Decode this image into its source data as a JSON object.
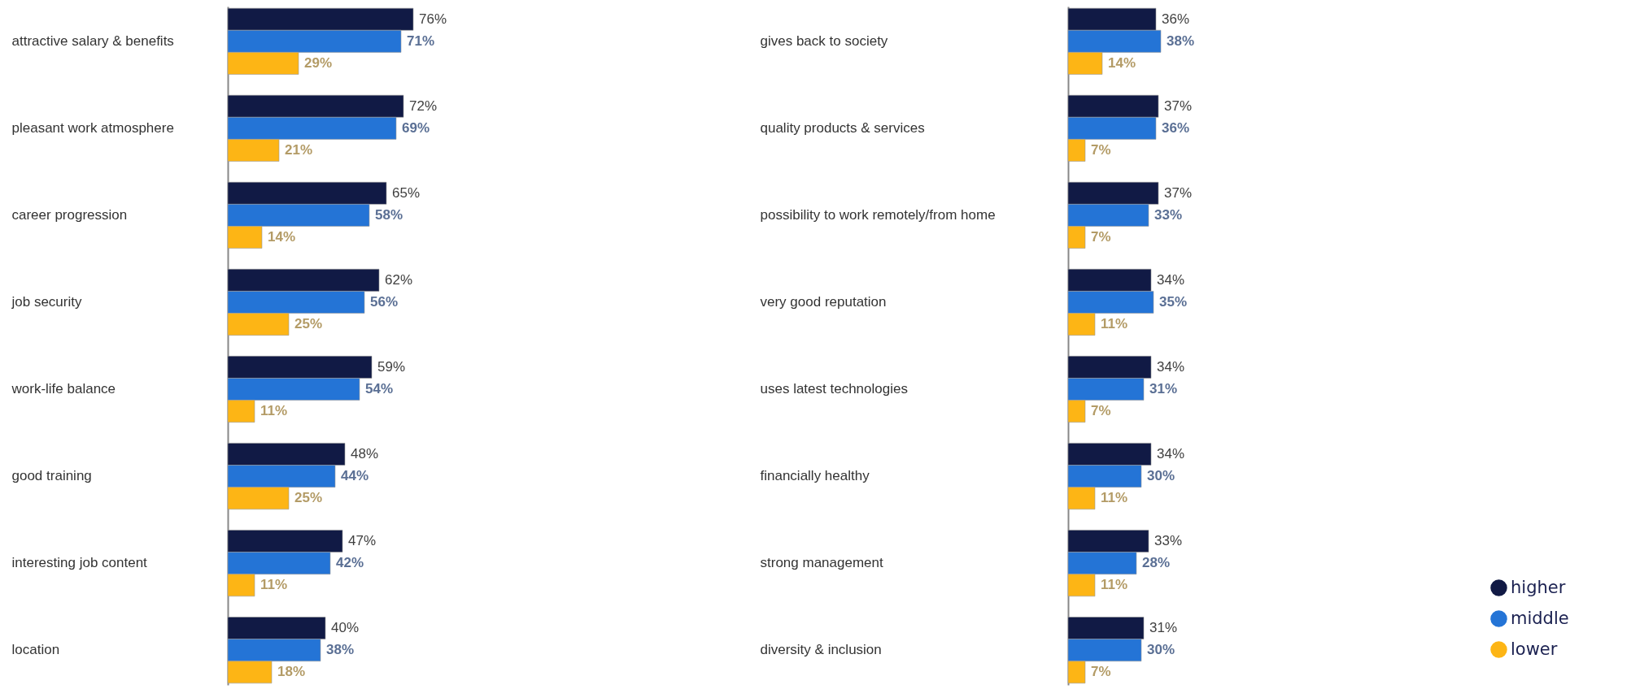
{
  "chart_data": [
    {
      "type": "bar",
      "orientation": "horizontal",
      "legend": false,
      "categories": [
        "attractive salary & benefits",
        "pleasant work atmosphere",
        "career progression",
        "job security",
        "work-life balance",
        "good training",
        "interesting job content",
        "location"
      ],
      "series": [
        {
          "color": "#111a45",
          "values": [
            76,
            72,
            65,
            62,
            59,
            48,
            47,
            40
          ],
          "value_labels": [
            "76%",
            "72%",
            "65%",
            "62%",
            "59%",
            "48%",
            "47%",
            "40%"
          ]
        },
        {
          "color": "#2474d6",
          "values": [
            71,
            69,
            58,
            56,
            54,
            44,
            42,
            38
          ],
          "value_labels": [
            "71%",
            "69%",
            "58%",
            "56%",
            "54%",
            "44%",
            "42%",
            "38%"
          ]
        },
        {
          "color": "#fdb515",
          "values": [
            29,
            21,
            14,
            25,
            11,
            25,
            11,
            18
          ],
          "value_labels": [
            "29%",
            "21%",
            "14%",
            "25%",
            "11%",
            "25%",
            "11%",
            "18%"
          ]
        }
      ]
    },
    {
      "type": "bar",
      "orientation": "horizontal",
      "legend": "bottom right",
      "categories": [
        "gives back to society",
        "quality products & services",
        "possibility to work remotely/from home",
        "very good reputation",
        "uses latest technologies",
        "financially healthy",
        "strong management",
        "diversity & inclusion"
      ],
      "series": [
        {
          "name": "higher",
          "color": "#111a45",
          "values": [
            36,
            37,
            37,
            34,
            34,
            34,
            33,
            31
          ],
          "value_labels": [
            "36%",
            "37%",
            "37%",
            "34%",
            "34%",
            "34%",
            "33%",
            "31%"
          ]
        },
        {
          "name": "middle",
          "color": "#2474d6",
          "values": [
            38,
            36,
            33,
            35,
            31,
            30,
            28,
            30
          ],
          "value_labels": [
            "38%",
            "36%",
            "33%",
            "35%",
            "31%",
            "30%",
            "28%",
            "30%"
          ]
        },
        {
          "name": "lower",
          "color": "#fdb515",
          "values": [
            14,
            7,
            7,
            11,
            7,
            11,
            11,
            7
          ],
          "value_labels": [
            "14%",
            "7%",
            "7%",
            "11%",
            "7%",
            "11%",
            "11%",
            "7%"
          ]
        }
      ]
    }
  ]
}
